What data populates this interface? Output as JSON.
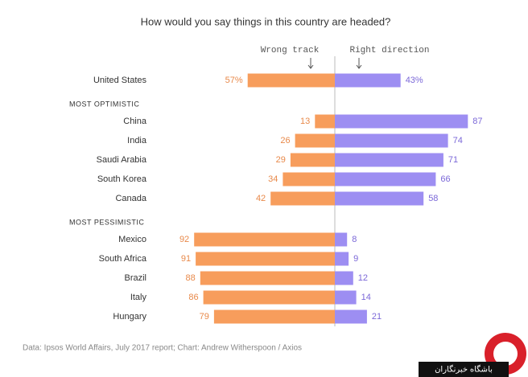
{
  "chart_data": [
    {
      "type": "diverging_bar",
      "title": "How would you say things in this country are headed?",
      "categories": [
        "United States"
      ],
      "series": [
        {
          "name": "Wrong track",
          "color": "#f79d5c",
          "values": [
            57
          ],
          "value_labels": [
            "57%"
          ]
        },
        {
          "name": "Right direction",
          "color": "#9d8ef2",
          "values": [
            43
          ],
          "value_labels": [
            "43%"
          ]
        }
      ]
    },
    {
      "type": "diverging_bar",
      "subtitle": "MOST OPTIMISTIC",
      "categories": [
        "China",
        "India",
        "Saudi Arabia",
        "South Korea",
        "Canada"
      ],
      "series": [
        {
          "color": "#f79d5c",
          "values": [
            13,
            26,
            29,
            34,
            42
          ]
        },
        {
          "color": "#9d8ef2",
          "values": [
            87,
            74,
            71,
            66,
            58
          ]
        }
      ]
    },
    {
      "type": "diverging_bar",
      "subtitle": "MOST PESSIMISTIC",
      "categories": [
        "Mexico",
        "South Africa",
        "Brazil",
        "Italy",
        "Hungary"
      ],
      "series": [
        {
          "color": "#f79d5c",
          "values": [
            92,
            91,
            88,
            86,
            79
          ]
        },
        {
          "color": "#9d8ef2",
          "values": [
            8,
            9,
            12,
            14,
            21
          ]
        }
      ]
    }
  ],
  "source": "Data: Ipsos World Affairs, July 2017 report; Chart: Andrew Witherspoon / Axios",
  "watermark": "باشگاه خبرنگاران"
}
